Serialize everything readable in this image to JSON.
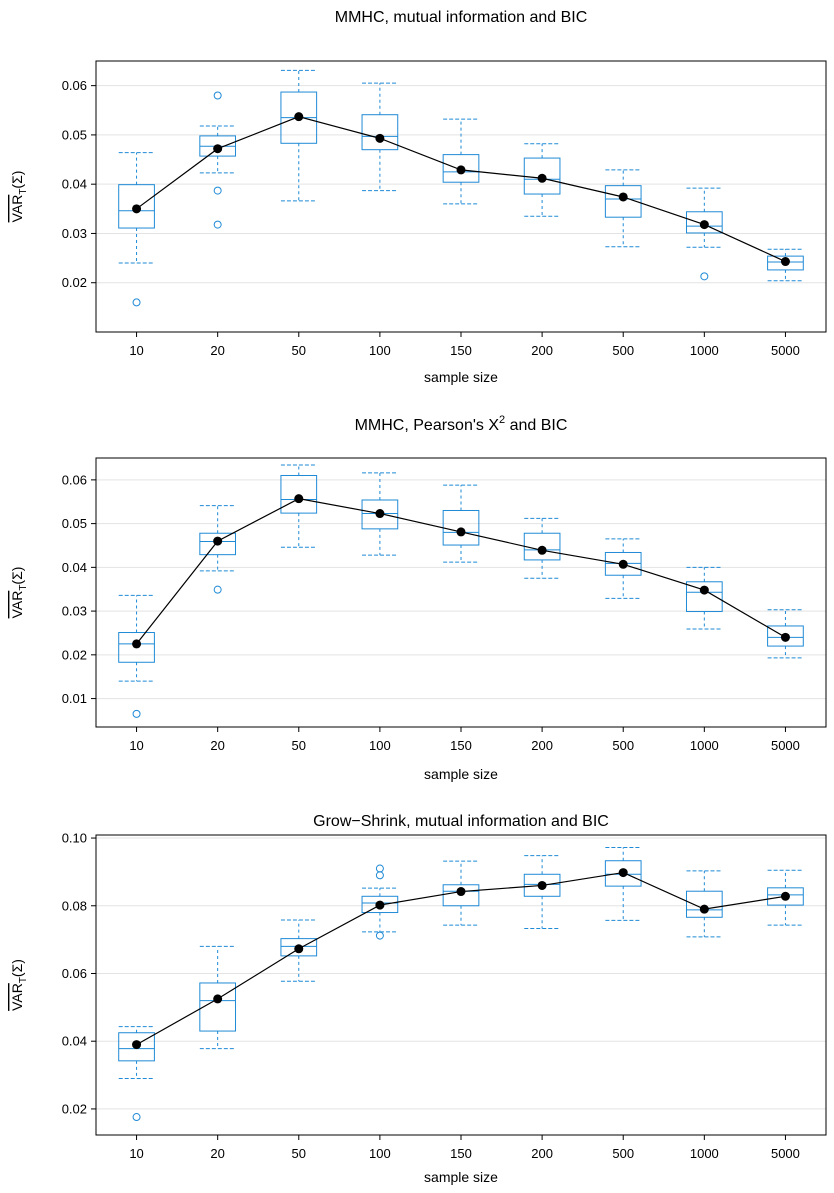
{
  "chart_data": [
    {
      "type": "box",
      "title": "MMHC, mutual information and BIC",
      "xlabel": "sample size",
      "ylabel": "VAR",
      "ylabel_sub": "T",
      "ylabel_arg": "(Σ)",
      "categories": [
        "10",
        "20",
        "50",
        "100",
        "150",
        "200",
        "500",
        "1000",
        "5000"
      ],
      "ylim": [
        0.01,
        0.065
      ],
      "yticks": [
        0.02,
        0.03,
        0.04,
        0.05,
        0.06
      ],
      "ytick_labels": [
        "0.02",
        "0.03",
        "0.04",
        "0.05",
        "0.06"
      ],
      "grid": true,
      "box_color": "#1f8ad6",
      "mean_color": "#000000",
      "boxes": [
        {
          "wlo": 0.024,
          "q1": 0.0311,
          "med": 0.0346,
          "q3": 0.0399,
          "whi": 0.0464,
          "outliers": [
            0.016
          ]
        },
        {
          "wlo": 0.0423,
          "q1": 0.0457,
          "med": 0.0477,
          "q3": 0.0498,
          "whi": 0.0518,
          "outliers": [
            0.058,
            0.0387,
            0.0318
          ]
        },
        {
          "wlo": 0.0366,
          "q1": 0.0483,
          "med": 0.0535,
          "q3": 0.0587,
          "whi": 0.0631,
          "outliers": []
        },
        {
          "wlo": 0.0387,
          "q1": 0.047,
          "med": 0.0497,
          "q3": 0.0541,
          "whi": 0.0605,
          "outliers": []
        },
        {
          "wlo": 0.036,
          "q1": 0.0404,
          "med": 0.0425,
          "q3": 0.046,
          "whi": 0.0532,
          "outliers": []
        },
        {
          "wlo": 0.0335,
          "q1": 0.038,
          "med": 0.041,
          "q3": 0.0453,
          "whi": 0.0482,
          "outliers": []
        },
        {
          "wlo": 0.0273,
          "q1": 0.0333,
          "med": 0.037,
          "q3": 0.0397,
          "whi": 0.0429,
          "outliers": []
        },
        {
          "wlo": 0.0272,
          "q1": 0.0301,
          "med": 0.0315,
          "q3": 0.0344,
          "whi": 0.0392,
          "outliers": [
            0.0213
          ]
        },
        {
          "wlo": 0.0204,
          "q1": 0.0226,
          "med": 0.0242,
          "q3": 0.0254,
          "whi": 0.0268,
          "outliers": []
        }
      ],
      "means": [
        0.035,
        0.0472,
        0.0537,
        0.0493,
        0.0429,
        0.0412,
        0.0374,
        0.0318,
        0.0243
      ]
    },
    {
      "type": "box",
      "title": "MMHC, Pearson's X",
      "title_sup": "2",
      "title_suffix": " and BIC",
      "xlabel": "sample size",
      "ylabel": "VAR",
      "ylabel_sub": "T",
      "ylabel_arg": "(Σ)",
      "categories": [
        "10",
        "20",
        "50",
        "100",
        "150",
        "200",
        "500",
        "1000",
        "5000"
      ],
      "ylim": [
        0.0035,
        0.065
      ],
      "yticks": [
        0.01,
        0.02,
        0.03,
        0.04,
        0.05,
        0.06
      ],
      "ytick_labels": [
        "0.01",
        "0.02",
        "0.03",
        "0.04",
        "0.05",
        "0.06"
      ],
      "grid": true,
      "box_color": "#1f8ad6",
      "mean_color": "#000000",
      "boxes": [
        {
          "wlo": 0.014,
          "q1": 0.0183,
          "med": 0.0225,
          "q3": 0.0251,
          "whi": 0.0336,
          "outliers": [
            0.0065
          ]
        },
        {
          "wlo": 0.0392,
          "q1": 0.0429,
          "med": 0.0459,
          "q3": 0.0478,
          "whi": 0.0541,
          "outliers": [
            0.0349
          ]
        },
        {
          "wlo": 0.0446,
          "q1": 0.0524,
          "med": 0.0555,
          "q3": 0.061,
          "whi": 0.0634,
          "outliers": []
        },
        {
          "wlo": 0.0428,
          "q1": 0.0488,
          "med": 0.0523,
          "q3": 0.0554,
          "whi": 0.0616,
          "outliers": []
        },
        {
          "wlo": 0.0412,
          "q1": 0.0451,
          "med": 0.048,
          "q3": 0.053,
          "whi": 0.0588,
          "outliers": []
        },
        {
          "wlo": 0.0375,
          "q1": 0.0417,
          "med": 0.044,
          "q3": 0.0478,
          "whi": 0.0512,
          "outliers": []
        },
        {
          "wlo": 0.0329,
          "q1": 0.0382,
          "med": 0.0409,
          "q3": 0.0434,
          "whi": 0.0465,
          "outliers": []
        },
        {
          "wlo": 0.0259,
          "q1": 0.0299,
          "med": 0.0343,
          "q3": 0.0367,
          "whi": 0.04,
          "outliers": []
        },
        {
          "wlo": 0.0193,
          "q1": 0.022,
          "med": 0.024,
          "q3": 0.0266,
          "whi": 0.0303,
          "outliers": []
        }
      ],
      "means": [
        0.0225,
        0.046,
        0.0557,
        0.0523,
        0.0481,
        0.0439,
        0.0407,
        0.0348,
        0.024
      ]
    },
    {
      "type": "box",
      "title": "Grow−Shrink, mutual information and BIC",
      "xlabel": "sample size",
      "ylabel": "VAR",
      "ylabel_sub": "T",
      "ylabel_arg": "(Σ)",
      "categories": [
        "10",
        "20",
        "50",
        "100",
        "150",
        "200",
        "500",
        "1000",
        "5000"
      ],
      "ylim": [
        0.0123,
        0.1009
      ],
      "yticks": [
        0.02,
        0.04,
        0.06,
        0.08,
        0.1
      ],
      "ytick_labels": [
        "0.02",
        "0.04",
        "0.06",
        "0.08",
        "0.10"
      ],
      "grid": true,
      "box_color": "#1f8ad6",
      "mean_color": "#000000",
      "boxes": [
        {
          "wlo": 0.029,
          "q1": 0.0342,
          "med": 0.0378,
          "q3": 0.0425,
          "whi": 0.0443,
          "outliers": [
            0.0176
          ]
        },
        {
          "wlo": 0.0378,
          "q1": 0.043,
          "med": 0.052,
          "q3": 0.0572,
          "whi": 0.068,
          "outliers": []
        },
        {
          "wlo": 0.0577,
          "q1": 0.0652,
          "med": 0.068,
          "q3": 0.0703,
          "whi": 0.0758,
          "outliers": []
        },
        {
          "wlo": 0.0723,
          "q1": 0.078,
          "med": 0.0808,
          "q3": 0.0828,
          "whi": 0.0852,
          "outliers": [
            0.091,
            0.089,
            0.0712
          ]
        },
        {
          "wlo": 0.0743,
          "q1": 0.08,
          "med": 0.0843,
          "q3": 0.0862,
          "whi": 0.0932,
          "outliers": []
        },
        {
          "wlo": 0.0733,
          "q1": 0.0828,
          "med": 0.0863,
          "q3": 0.0893,
          "whi": 0.0948,
          "outliers": []
        },
        {
          "wlo": 0.0757,
          "q1": 0.0858,
          "med": 0.0893,
          "q3": 0.0933,
          "whi": 0.0972,
          "outliers": []
        },
        {
          "wlo": 0.0708,
          "q1": 0.0766,
          "med": 0.0788,
          "q3": 0.0843,
          "whi": 0.0903,
          "outliers": []
        },
        {
          "wlo": 0.0743,
          "q1": 0.0802,
          "med": 0.0832,
          "q3": 0.0853,
          "whi": 0.0905,
          "outliers": []
        }
      ],
      "means": [
        0.039,
        0.0525,
        0.0673,
        0.0802,
        0.0842,
        0.086,
        0.0898,
        0.079,
        0.0828
      ]
    }
  ]
}
